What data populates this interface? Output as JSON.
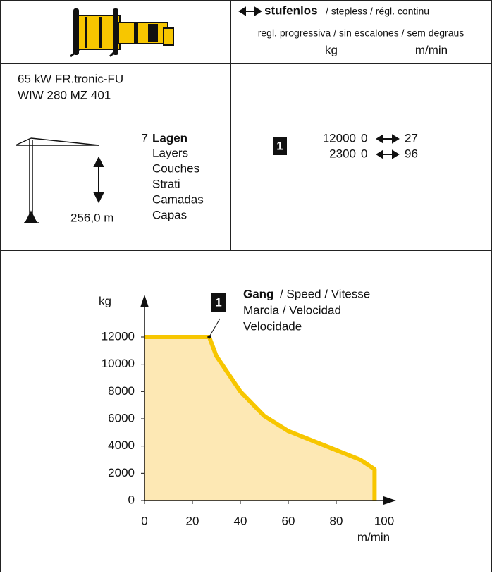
{
  "header": {
    "title_bold": "stufenlos",
    "title_rest": "/ stepless / régl. continu",
    "subtitle": "regl. progressiva / sin escalones / sem degraus",
    "unit_load": "kg",
    "unit_speed": "m/min"
  },
  "specs": {
    "motor": "65 kW FR.tronic-FU",
    "model": "WIW 280 MZ 401",
    "layers_count": 7,
    "layers_bold": "Lagen",
    "layers": [
      "Layers",
      "Couches",
      "Strati",
      "Camadas",
      "Capas"
    ],
    "height": "256,0 m",
    "gear": 1,
    "rows": [
      [
        12000,
        0,
        27
      ],
      [
        2300,
        0,
        96
      ]
    ]
  },
  "chart_data": {
    "type": "line",
    "y_label": "kg",
    "x_label": "m/min",
    "annotation": {
      "gear": 1,
      "bold": "Gang",
      "lines": [
        "/ Speed / Vitesse",
        "Marcia / Velocidad",
        "Velocidade"
      ]
    },
    "series": [
      {
        "color": "#f7c600",
        "fill": "#fde8b4",
        "x": [
          0,
          27,
          30,
          40,
          50,
          60,
          70,
          80,
          90,
          96,
          96
        ],
        "values": [
          12000,
          12000,
          10600,
          8000,
          6200,
          5100,
          4400,
          3700,
          3000,
          2300,
          0
        ]
      }
    ],
    "xlim": [
      0,
      100
    ],
    "ylim": [
      0,
      12000
    ],
    "xticks": [
      0,
      20,
      40,
      60,
      80,
      100
    ],
    "yticks": [
      0,
      2000,
      4000,
      6000,
      8000,
      10000,
      12000
    ]
  }
}
